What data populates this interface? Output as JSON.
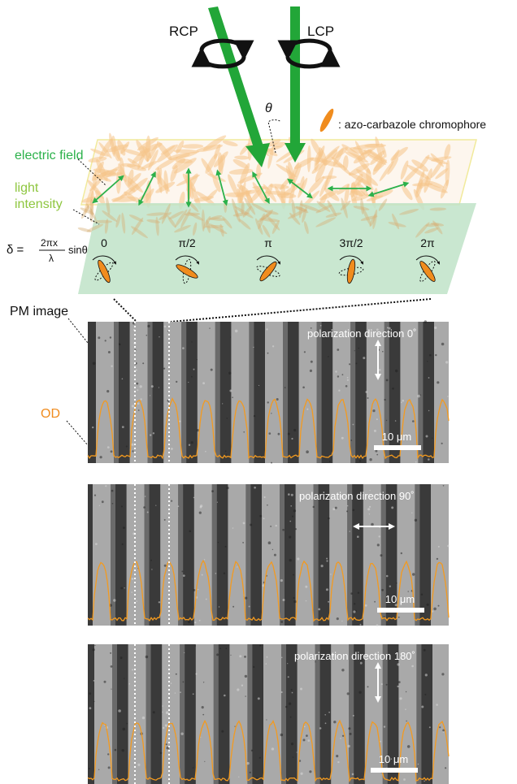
{
  "beams": {
    "left": "RCP",
    "right": "LCP",
    "angle": "θ"
  },
  "legend": {
    "text": ": azo-carbazole chromophore"
  },
  "labels": {
    "electric_field": "electric field",
    "light_intensity_1": "light",
    "light_intensity_2": "intensity",
    "pm_image": "PM image",
    "od": "OD"
  },
  "equation": {
    "lhs": "δ = ",
    "numerator": "2πx",
    "denominator": "λ",
    "rhs": "sinθ"
  },
  "phases": [
    "0",
    "π/2",
    "π",
    "3π/2",
    "2π"
  ],
  "panels": [
    {
      "pol_label": "polarization direction 0˚",
      "scale_label": "10 μm",
      "arrow": "vertical"
    },
    {
      "pol_label": "polarization direction 90˚",
      "scale_label": "10 μm",
      "arrow": "horizontal"
    },
    {
      "pol_label": "polarization direction 180˚",
      "scale_label": "10 μm",
      "arrow": "vertical"
    }
  ],
  "colors": {
    "beam_green": "#22a638",
    "chromophore_orange": "#f08c1e",
    "field_arrow_green": "#2bb14a",
    "substrate_green": "#bfe3c8",
    "od_curve": "#f39a1f",
    "pm_dark": "#2a2a2a",
    "pm_light": "#c9c9c9"
  }
}
